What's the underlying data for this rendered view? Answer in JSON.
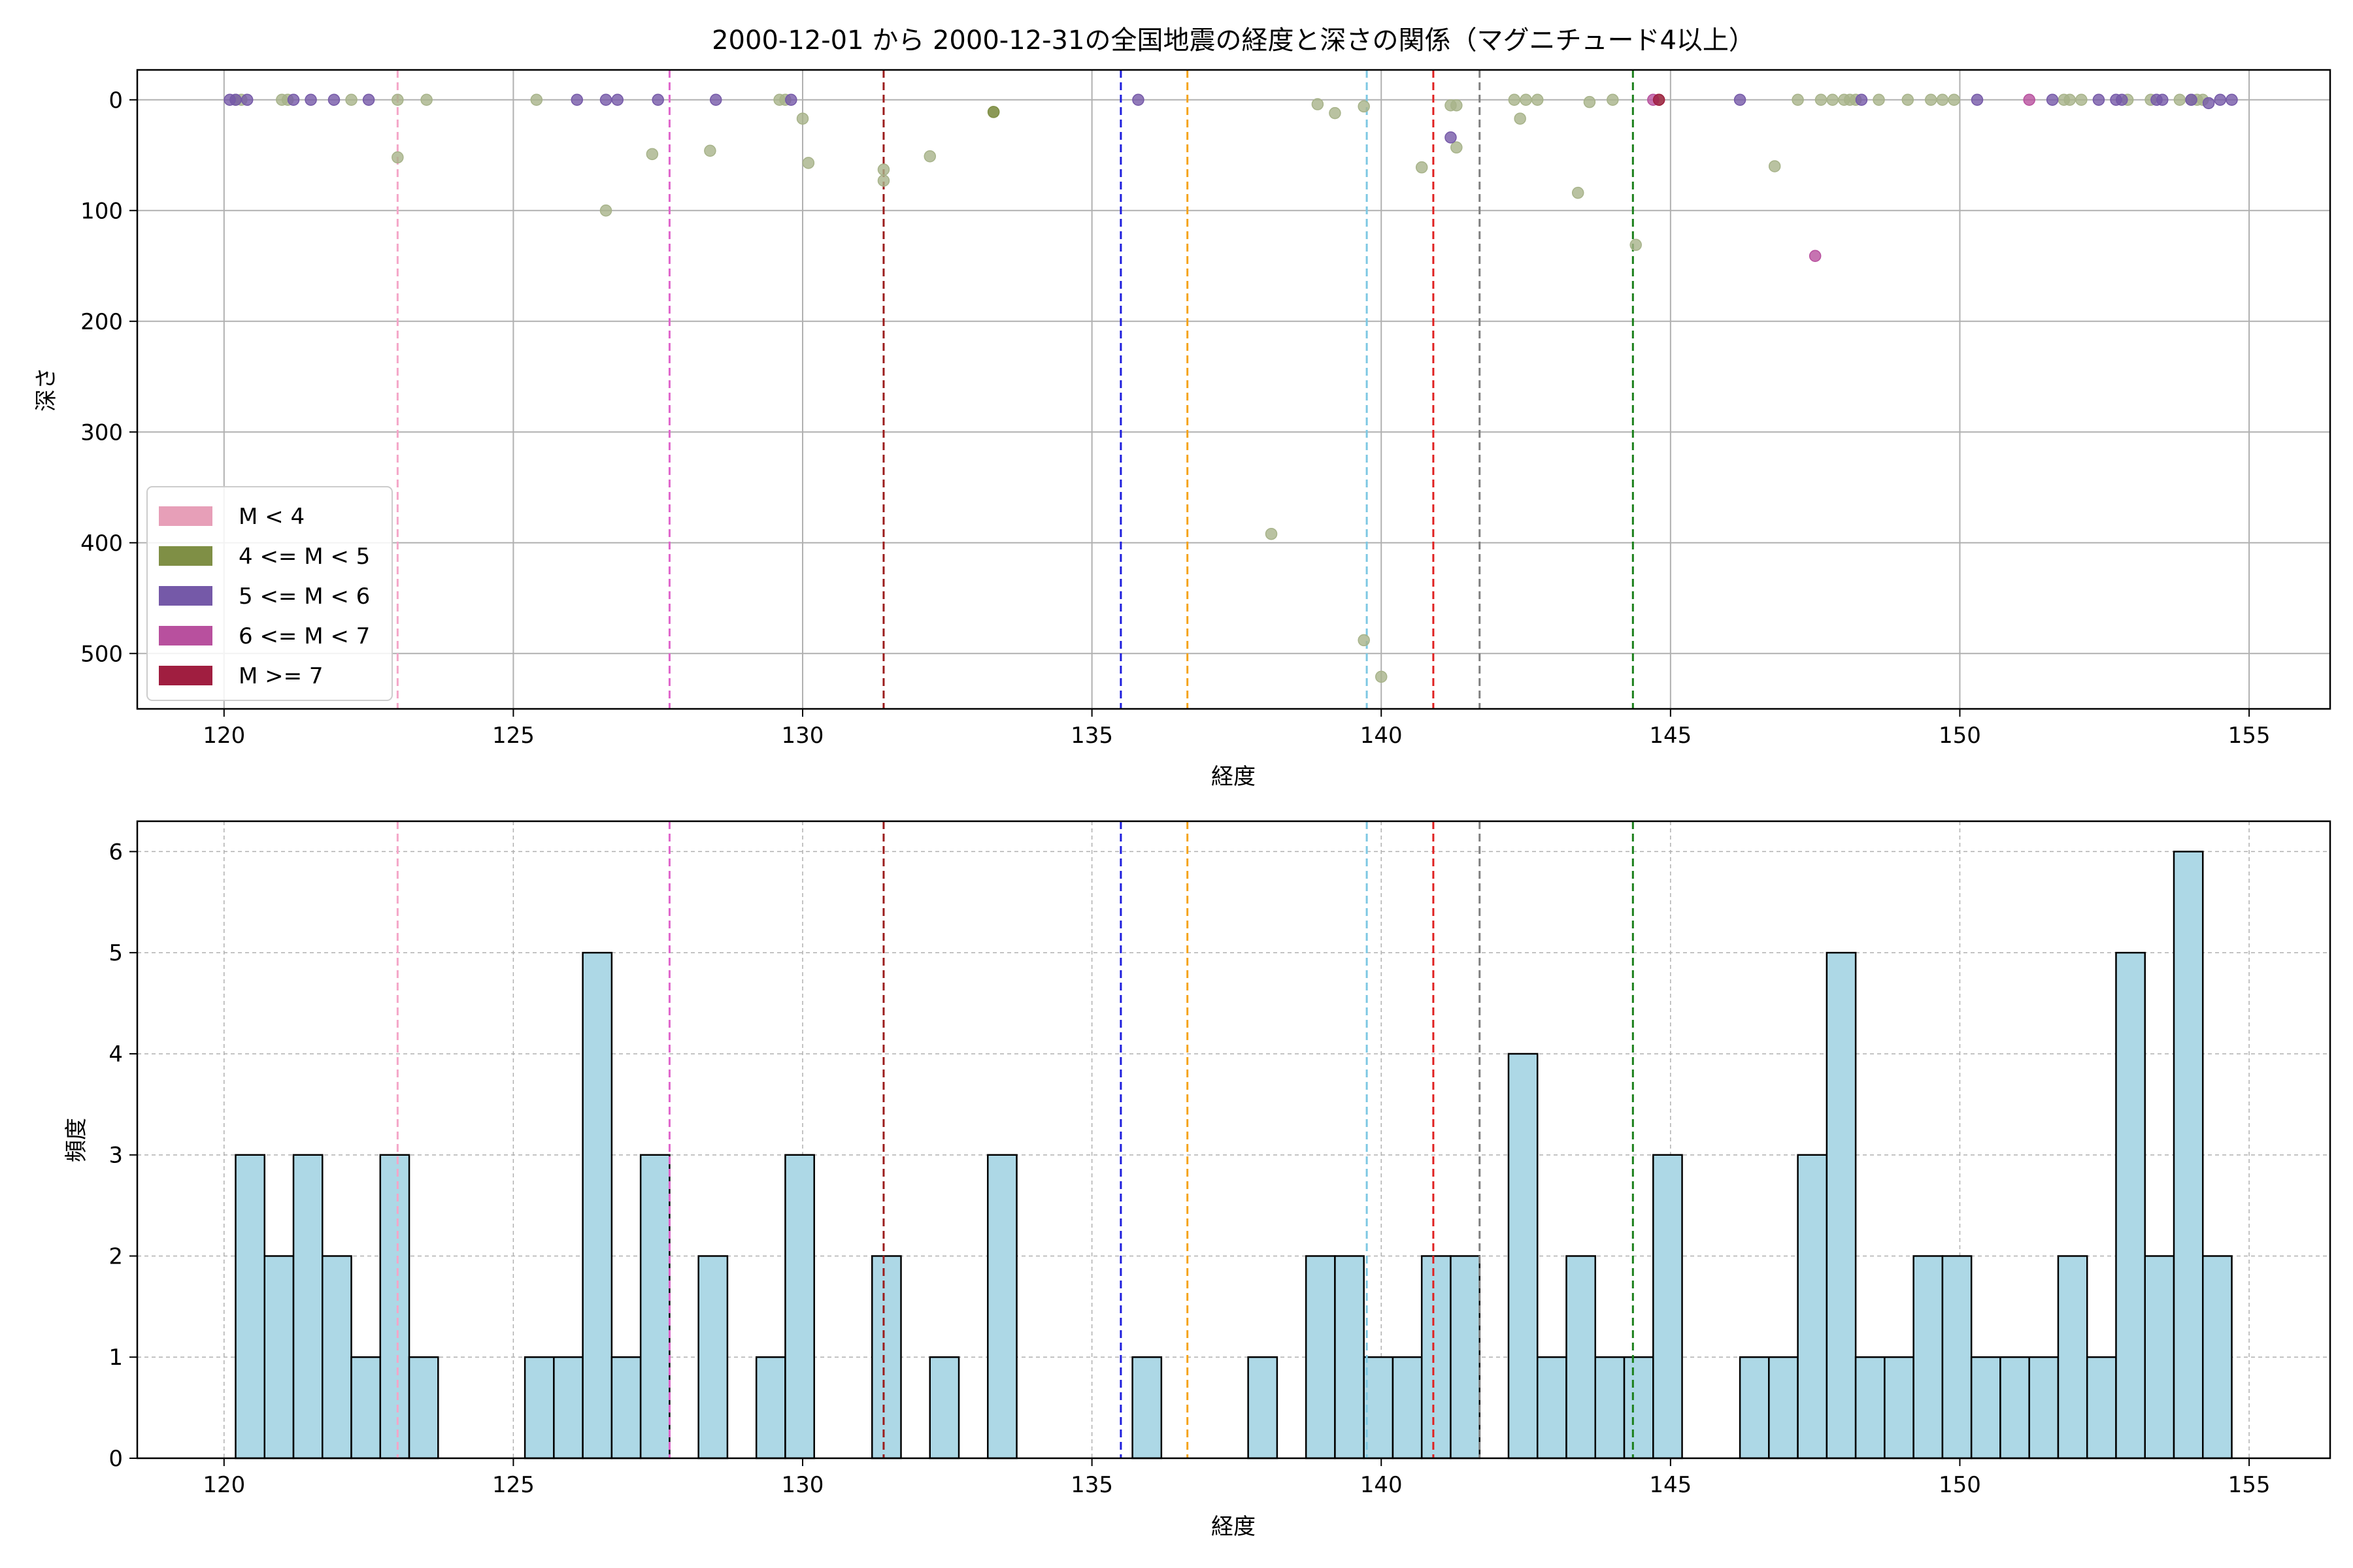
{
  "title": "2000-12-01 から 2000-12-31の全国地震の経度と深さの関係（マグニチュード4以上）",
  "chart_data": [
    {
      "type": "scatter",
      "xlabel": "経度",
      "ylabel": "深さ",
      "xlim": [
        118.5,
        156.4
      ],
      "ylim": [
        550,
        -27
      ],
      "y_inverted": true,
      "grid": true,
      "legend_placement": "lower-left",
      "xticks": [
        120,
        125,
        130,
        135,
        140,
        145,
        150,
        155
      ],
      "yticks": [
        0,
        100,
        200,
        300,
        400,
        500
      ],
      "legend": [
        {
          "label": "M < 4",
          "color": "#e79fb8"
        },
        {
          "label": "4 <= M < 5",
          "color": "#7f8f45"
        },
        {
          "label": "5 <= M < 6",
          "color": "#7559a8"
        },
        {
          "label": "6 <= M < 7",
          "color": "#b8509e"
        },
        {
          "label": "M >= 7",
          "color": "#a01e40"
        }
      ],
      "vlines": [
        {
          "x": 123.0,
          "color": "#f4a6c8"
        },
        {
          "x": 127.7,
          "color": "#e066cc"
        },
        {
          "x": 131.4,
          "color": "#9b1c1c"
        },
        {
          "x": 135.5,
          "color": "#1f1fdd"
        },
        {
          "x": 136.65,
          "color": "#f5a31a"
        },
        {
          "x": 139.75,
          "color": "#7ec8e3"
        },
        {
          "x": 140.9,
          "color": "#e02020"
        },
        {
          "x": 141.7,
          "color": "#808080"
        },
        {
          "x": 144.35,
          "color": "#1a7f1a"
        }
      ],
      "series": [
        {
          "color": "#a7b38a",
          "points": [
            [
              120.2,
              0
            ],
            [
              120.3,
              0
            ],
            [
              121.0,
              0
            ],
            [
              121.1,
              0
            ],
            [
              122.2,
              0
            ],
            [
              123.0,
              0
            ],
            [
              123.0,
              52
            ],
            [
              123.5,
              0
            ],
            [
              125.4,
              0
            ],
            [
              126.6,
              100
            ],
            [
              127.4,
              49
            ],
            [
              128.4,
              46
            ],
            [
              129.6,
              0
            ],
            [
              129.7,
              0
            ],
            [
              130.0,
              17
            ],
            [
              130.1,
              57
            ],
            [
              131.4,
              63
            ],
            [
              131.4,
              73
            ],
            [
              132.2,
              51
            ],
            [
              133.3,
              11
            ],
            [
              138.1,
              392
            ],
            [
              138.9,
              4
            ],
            [
              139.2,
              12
            ],
            [
              139.7,
              6
            ],
            [
              139.7,
              488
            ],
            [
              140.0,
              521
            ],
            [
              140.7,
              61
            ],
            [
              141.2,
              5
            ],
            [
              141.3,
              5
            ],
            [
              141.3,
              43
            ],
            [
              142.3,
              0
            ],
            [
              142.4,
              17
            ],
            [
              142.5,
              0
            ],
            [
              142.7,
              0
            ],
            [
              143.4,
              84
            ],
            [
              143.6,
              2
            ],
            [
              144.0,
              0
            ],
            [
              144.4,
              131
            ],
            [
              144.8,
              0
            ],
            [
              146.8,
              60
            ],
            [
              147.2,
              0
            ],
            [
              147.6,
              0
            ],
            [
              147.8,
              0
            ],
            [
              148.0,
              0
            ],
            [
              148.1,
              0
            ],
            [
              148.2,
              0
            ],
            [
              148.6,
              0
            ],
            [
              149.1,
              0
            ],
            [
              149.5,
              0
            ],
            [
              149.7,
              0
            ],
            [
              149.9,
              0
            ],
            [
              151.8,
              0
            ],
            [
              151.9,
              0
            ],
            [
              152.1,
              0
            ],
            [
              152.9,
              0
            ],
            [
              153.3,
              0
            ],
            [
              153.8,
              0
            ],
            [
              154.0,
              0
            ],
            [
              154.1,
              0
            ],
            [
              154.2,
              0
            ]
          ]
        },
        {
          "color": "#7f8f45",
          "points": [
            [
              133.3,
              11
            ]
          ]
        },
        {
          "color": "#7559a8",
          "points": [
            [
              120.1,
              0
            ],
            [
              120.2,
              0
            ],
            [
              120.4,
              0
            ],
            [
              121.2,
              0
            ],
            [
              121.5,
              0
            ],
            [
              121.9,
              0
            ],
            [
              122.5,
              0
            ],
            [
              126.1,
              0
            ],
            [
              126.6,
              0
            ],
            [
              126.8,
              0
            ],
            [
              127.5,
              0
            ],
            [
              128.5,
              0
            ],
            [
              129.8,
              0
            ],
            [
              135.8,
              0
            ],
            [
              141.2,
              34
            ],
            [
              146.2,
              0
            ],
            [
              148.3,
              0
            ],
            [
              150.3,
              0
            ],
            [
              151.6,
              0
            ],
            [
              152.4,
              0
            ],
            [
              152.7,
              0
            ],
            [
              152.8,
              0
            ],
            [
              153.4,
              0
            ],
            [
              153.5,
              0
            ],
            [
              154.0,
              0
            ],
            [
              154.3,
              3
            ],
            [
              154.5,
              0
            ],
            [
              154.7,
              0
            ]
          ]
        },
        {
          "color": "#b8509e",
          "points": [
            [
              144.7,
              0
            ],
            [
              147.5,
              141
            ],
            [
              151.2,
              0
            ]
          ]
        },
        {
          "color": "#a01e40",
          "points": [
            [
              144.8,
              0
            ]
          ]
        }
      ]
    },
    {
      "type": "bar",
      "xlabel": "経度",
      "ylabel": "頻度",
      "xlim": [
        118.5,
        156.4
      ],
      "ylim": [
        0,
        6.3
      ],
      "grid": true,
      "xticks": [
        120,
        125,
        130,
        135,
        140,
        145,
        150,
        155
      ],
      "yticks": [
        0,
        1,
        2,
        3,
        4,
        5,
        6
      ],
      "bar_color": "#add8e6",
      "bin_width": 0.5,
      "bins": [
        [
          120.2,
          3
        ],
        [
          120.7,
          2
        ],
        [
          121.2,
          3
        ],
        [
          121.7,
          2
        ],
        [
          122.2,
          1
        ],
        [
          122.7,
          3
        ],
        [
          123.2,
          1
        ],
        [
          125.2,
          1
        ],
        [
          125.7,
          1
        ],
        [
          126.2,
          5
        ],
        [
          126.7,
          1
        ],
        [
          127.2,
          3
        ],
        [
          128.2,
          2
        ],
        [
          129.2,
          1
        ],
        [
          129.7,
          3
        ],
        [
          131.2,
          2
        ],
        [
          132.2,
          1
        ],
        [
          133.2,
          3
        ],
        [
          135.7,
          1
        ],
        [
          137.7,
          1
        ],
        [
          138.7,
          2
        ],
        [
          139.2,
          2
        ],
        [
          139.7,
          1
        ],
        [
          140.2,
          1
        ],
        [
          140.7,
          2
        ],
        [
          141.2,
          2
        ],
        [
          142.2,
          4
        ],
        [
          142.7,
          1
        ],
        [
          143.2,
          2
        ],
        [
          143.7,
          1
        ],
        [
          144.2,
          1
        ],
        [
          144.7,
          3
        ],
        [
          146.2,
          1
        ],
        [
          146.7,
          1
        ],
        [
          147.2,
          3
        ],
        [
          147.7,
          5
        ],
        [
          148.2,
          1
        ],
        [
          148.7,
          1
        ],
        [
          149.2,
          2
        ],
        [
          149.7,
          2
        ],
        [
          150.2,
          1
        ],
        [
          150.7,
          1
        ],
        [
          151.2,
          1
        ],
        [
          151.7,
          2
        ],
        [
          152.2,
          1
        ],
        [
          152.7,
          5
        ],
        [
          153.2,
          2
        ],
        [
          153.7,
          6
        ],
        [
          154.2,
          2
        ]
      ],
      "vlines": [
        {
          "x": 123.0,
          "color": "#f4a6c8"
        },
        {
          "x": 127.7,
          "color": "#e066cc"
        },
        {
          "x": 131.4,
          "color": "#9b1c1c"
        },
        {
          "x": 135.5,
          "color": "#1f1fdd"
        },
        {
          "x": 136.65,
          "color": "#f5a31a"
        },
        {
          "x": 139.75,
          "color": "#7ec8e3"
        },
        {
          "x": 140.9,
          "color": "#e02020"
        },
        {
          "x": 141.7,
          "color": "#808080"
        },
        {
          "x": 144.35,
          "color": "#1a7f1a"
        }
      ]
    }
  ]
}
